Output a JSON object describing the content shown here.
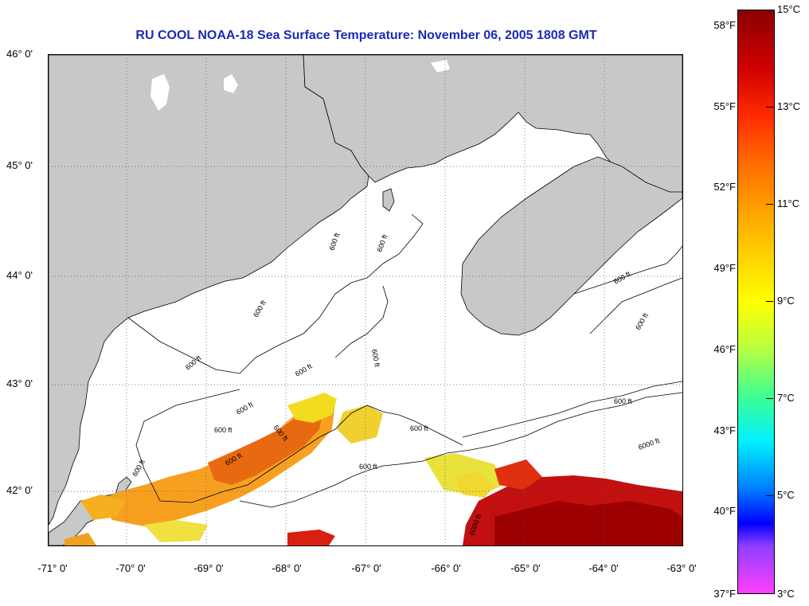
{
  "title": "RU COOL  NOAA-18  Sea Surface Temperature:  November 06, 2005 1808 GMT",
  "map": {
    "lat_labels": [
      "46° 0'",
      "45° 0'",
      "44° 0'",
      "43° 0'",
      "42° 0'"
    ],
    "lon_labels": [
      "-71° 0'",
      "-70° 0'",
      "-69° 0'",
      "-68° 0'",
      "-67° 0'",
      "-66° 0'",
      "-65° 0'",
      "-64° 0'",
      "-63° 0'"
    ],
    "contour_labels": [
      "600 ft",
      "600 ft",
      "600 ft",
      "600 ft",
      "600 ft",
      "600 ft",
      "600 ft",
      "600 ft",
      "600 ft",
      "600 ft",
      "600 ft",
      "600 ft",
      "600 ft",
      "600 ft",
      "6000 ft",
      "6000 ft",
      "600 ft",
      "600 ft"
    ],
    "colors": {
      "land": "#c8c8c8",
      "water": "#ffffff",
      "grid": "#555555"
    }
  },
  "colorbar": {
    "fahrenheit_labels": [
      "58°F",
      "55°F",
      "52°F",
      "49°F",
      "46°F",
      "43°F",
      "40°F",
      "37°F"
    ],
    "celsius_labels": [
      "15°C",
      "13°C",
      "11°C",
      "9°C",
      "7°C",
      "5°C",
      "3°C"
    ]
  }
}
